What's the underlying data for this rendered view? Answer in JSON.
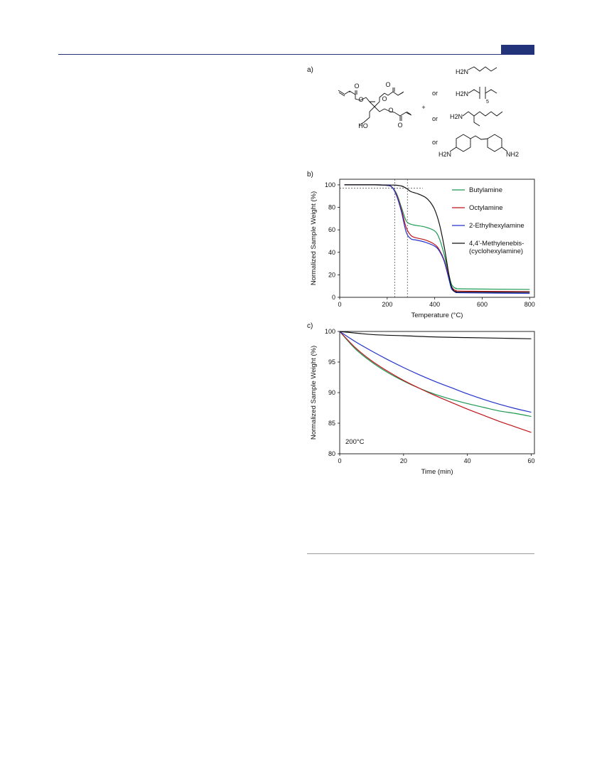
{
  "header": {
    "accent_color": "#23337a"
  },
  "panels": {
    "a": {
      "label": "a)"
    },
    "b": {
      "label": "b)"
    },
    "c": {
      "label": "c)"
    }
  },
  "scheme": {
    "plus": "+",
    "or_labels": [
      "or",
      "or",
      "or"
    ],
    "atom_labels": {
      "o1": "O",
      "o2": "O",
      "o3": "O",
      "o4": "O",
      "o5": "O",
      "o6": "O",
      "ho": "HO",
      "butyl_nh2": "H2N",
      "octyl_nh2": "H2N",
      "octyl_sub": "5",
      "ethylhexyl_nh2": "H2N",
      "mbcha_nh2_left": "H2N",
      "mbcha_nh2_right": "NH2"
    }
  },
  "chart_data": [
    {
      "type": "line",
      "panel": "b)",
      "xlabel": "Temperature (°C)",
      "ylabel": "Normalized Sample Weight (%)",
      "xlim": [
        0,
        820
      ],
      "ylim": [
        0,
        105
      ],
      "xticks": [
        0,
        200,
        400,
        600,
        800
      ],
      "yticks": [
        0,
        20,
        40,
        60,
        80,
        100
      ],
      "legend_position": "right",
      "reference_lines": {
        "vertical_x": [
          232,
          285
        ],
        "horizontal_y": 97
      },
      "series": [
        {
          "name": "Butylamine",
          "color": "#1a9850",
          "x": [
            20,
            150,
            200,
            220,
            240,
            260,
            280,
            300,
            320,
            360,
            400,
            420,
            440,
            460,
            470,
            480,
            490,
            520,
            800
          ],
          "y": [
            100,
            100,
            99.5,
            98,
            92,
            80,
            68,
            65,
            64,
            62.5,
            59,
            52,
            38,
            20,
            12,
            9,
            8,
            7.5,
            7
          ]
        },
        {
          "name": "Octylamine",
          "color": "#c0141a",
          "x": [
            20,
            150,
            200,
            220,
            240,
            260,
            280,
            300,
            320,
            360,
            400,
            420,
            440,
            460,
            470,
            480,
            490,
            520,
            800
          ],
          "y": [
            100,
            100,
            99.5,
            98,
            91,
            78,
            62,
            55,
            53,
            51,
            47,
            42,
            33,
            18,
            10,
            7,
            6,
            5.5,
            5
          ]
        },
        {
          "name": "2-Ethylhexylamine",
          "color": "#2233cc",
          "x": [
            20,
            150,
            200,
            220,
            240,
            260,
            280,
            300,
            320,
            360,
            400,
            420,
            440,
            460,
            470,
            480,
            490,
            520,
            800
          ],
          "y": [
            100,
            100,
            99.5,
            98,
            90,
            76,
            58,
            52,
            51,
            49,
            45.5,
            41,
            32,
            16,
            8,
            5.5,
            4.5,
            4,
            3.5
          ]
        },
        {
          "name": "4,4'-Methylenebis-\n(cyclohexylamine)",
          "color": "#111111",
          "x": [
            20,
            150,
            230,
            260,
            280,
            300,
            330,
            360,
            380,
            400,
            420,
            440,
            460,
            470,
            480,
            490,
            520,
            800
          ],
          "y": [
            100,
            100,
            99.8,
            99,
            97,
            94,
            92,
            89,
            85,
            78,
            65,
            45,
            20,
            10,
            6,
            5,
            4.7,
            4.5
          ]
        }
      ]
    },
    {
      "type": "line",
      "panel": "c)",
      "xlabel": "Time (min)",
      "ylabel": "Normalized Sample Weight (%)",
      "annotation": "200°C",
      "xlim": [
        0,
        61
      ],
      "ylim": [
        80,
        100
      ],
      "xticks": [
        0,
        20,
        40,
        60
      ],
      "yticks": [
        80,
        85,
        90,
        95,
        100
      ],
      "series": [
        {
          "color": "#1a9850",
          "x": [
            0,
            5,
            10,
            15,
            20,
            25,
            30,
            35,
            40,
            45,
            50,
            55,
            60
          ],
          "y": [
            100,
            97.1,
            95.0,
            93.3,
            91.9,
            90.7,
            89.7,
            88.9,
            88.2,
            87.6,
            87.0,
            86.6,
            86.1
          ]
        },
        {
          "color": "#c0141a",
          "x": [
            0,
            5,
            10,
            15,
            20,
            25,
            30,
            35,
            40,
            45,
            50,
            55,
            60
          ],
          "y": [
            100,
            97.3,
            95.2,
            93.5,
            92.0,
            90.7,
            89.5,
            88.4,
            87.3,
            86.3,
            85.3,
            84.4,
            83.5
          ]
        },
        {
          "color": "#2233cc",
          "x": [
            0,
            5,
            10,
            15,
            20,
            25,
            30,
            35,
            40,
            45,
            50,
            55,
            60
          ],
          "y": [
            100,
            98.3,
            96.8,
            95.4,
            94.1,
            92.9,
            91.8,
            90.8,
            89.8,
            88.9,
            88.1,
            87.4,
            86.8
          ]
        },
        {
          "color": "#111111",
          "x": [
            0,
            10,
            20,
            30,
            40,
            50,
            60
          ],
          "y": [
            100,
            99.5,
            99.3,
            99.1,
            99.0,
            98.9,
            98.8
          ]
        }
      ]
    }
  ]
}
